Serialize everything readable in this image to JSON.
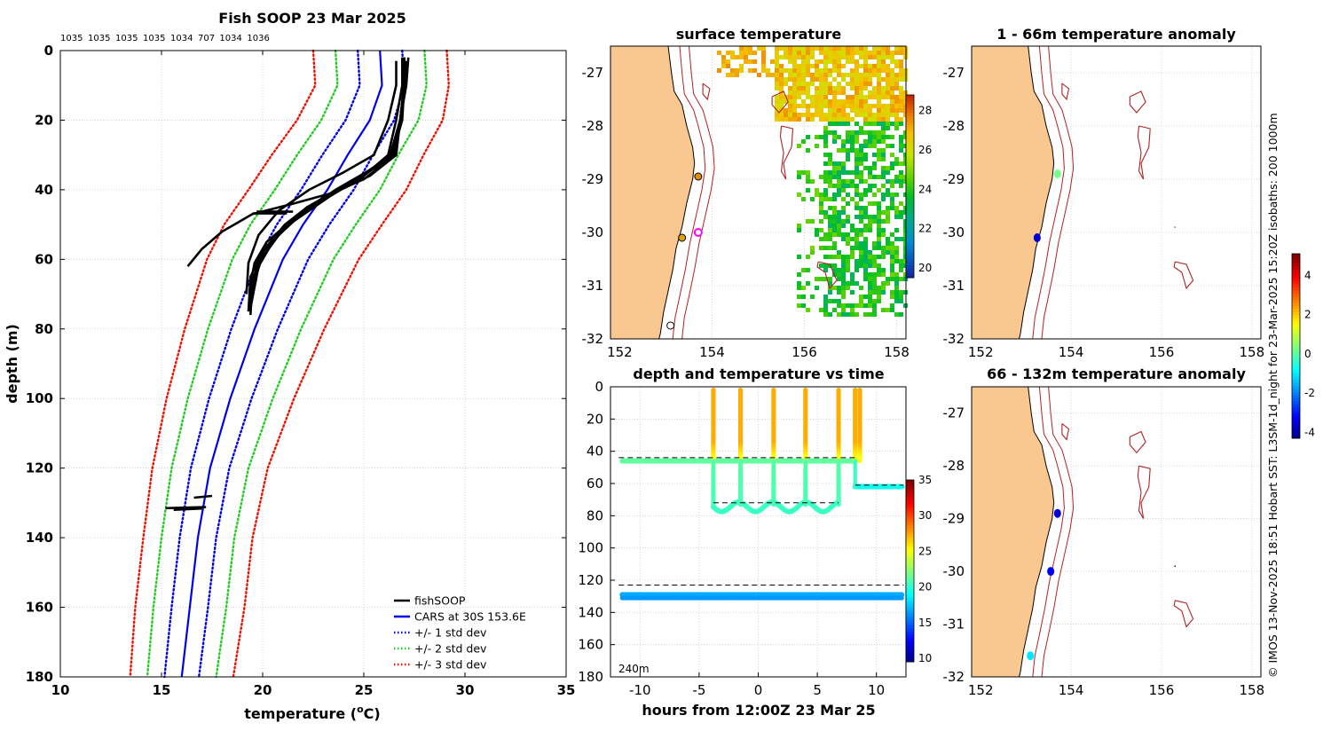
{
  "chart_data": [
    {
      "id": "profile",
      "type": "line",
      "title": "Fish SOOP 23 Mar 2025",
      "top_labels": [
        "1035",
        "1035",
        "1035",
        "1035",
        "1034",
        "707",
        "1034",
        "1036"
      ],
      "xlabel_main": "temperature (",
      "xlabel_sup": "o",
      "xlabel_end": "C)",
      "ylabel": "depth (m)",
      "xlim": [
        10,
        35
      ],
      "ylim": [
        0,
        180
      ],
      "xticks": [
        10,
        15,
        20,
        25,
        30,
        35
      ],
      "yticks": [
        0,
        20,
        40,
        60,
        80,
        100,
        120,
        140,
        160,
        180
      ],
      "depths": [
        0,
        10,
        20,
        30,
        40,
        50,
        60,
        80,
        100,
        120,
        140,
        160,
        180
      ],
      "cars_mean": [
        25.8,
        25.9,
        25.3,
        24.2,
        23.2,
        22.0,
        21.0,
        19.6,
        18.4,
        17.4,
        16.8,
        16.4,
        16.0
      ],
      "cars_std": [
        1.1,
        1.1,
        1.2,
        1.25,
        1.3,
        1.3,
        1.25,
        1.15,
        1.05,
        0.95,
        0.9,
        0.9,
        0.85
      ],
      "fish_series": [
        {
          "name": "cast1",
          "t": [
            27.0,
            27.0,
            26.8,
            26.6,
            25.3,
            23.5,
            22.0,
            21.2,
            20.2,
            19.6,
            19.4,
            19.4
          ],
          "d": [
            2,
            10,
            20,
            30,
            36,
            41,
            46,
            50,
            55,
            61,
            67,
            75
          ]
        },
        {
          "name": "cast2",
          "t": [
            27.2,
            27.1,
            26.8,
            26.3,
            25.0,
            23.3,
            21.3,
            20.0,
            19.4,
            19.3
          ],
          "d": [
            2,
            10,
            20,
            30,
            36,
            42,
            50,
            58,
            65,
            75
          ]
        },
        {
          "name": "cast3",
          "t": [
            26.9,
            26.9,
            26.6,
            26.2,
            24.8,
            22.8,
            21.2,
            20.0,
            19.5,
            19.4
          ],
          "d": [
            2,
            10,
            20,
            30,
            37,
            43,
            50,
            58,
            66,
            76
          ]
        },
        {
          "name": "cast4",
          "t": [
            27.1,
            27.0,
            26.8,
            26.4,
            25.1,
            23.6,
            22.1,
            20.8,
            19.8,
            19.4
          ],
          "d": [
            3,
            10,
            20,
            30,
            35,
            40,
            46,
            53,
            61,
            72
          ]
        },
        {
          "name": "cast5",
          "t": [
            26.6,
            26.6,
            26.2,
            25.5,
            24.0,
            22.3,
            20.8,
            19.8,
            19.3,
            19.2
          ],
          "d": [
            3,
            10,
            20,
            30,
            35,
            40,
            46,
            53,
            61,
            70
          ]
        },
        {
          "name": "cast6",
          "t": [
            27.1,
            27.0,
            26.8,
            26.5,
            25.2,
            23.7,
            22.2,
            21.1,
            20.1,
            19.5
          ],
          "d": [
            3,
            10,
            20,
            30,
            35,
            40,
            45,
            50,
            57,
            68
          ]
        },
        {
          "name": "cast7",
          "t": [
            27.0,
            27.0,
            26.8,
            26.3,
            25.0,
            23.4,
            21.5,
            19.5,
            18.0,
            17.0,
            16.3
          ],
          "d": [
            2,
            10,
            20,
            31,
            37,
            41,
            44,
            47,
            52,
            57,
            62
          ]
        },
        {
          "name": "cast8",
          "t": [
            27.0,
            27.0,
            26.9,
            26.4,
            25.2,
            23.8,
            22.2,
            20.8,
            19.8,
            19.4
          ],
          "d": [
            3,
            10,
            20,
            30,
            35,
            40,
            45,
            52,
            62,
            74
          ]
        },
        {
          "name": "bottom1",
          "t": [
            15.2,
            17.2
          ],
          "d": [
            131.5,
            131.2
          ]
        },
        {
          "name": "bottom2",
          "t": [
            15.6,
            17.0
          ],
          "d": [
            132.0,
            131.6
          ]
        },
        {
          "name": "bottom3",
          "t": [
            16.6,
            17.5
          ],
          "d": [
            128.5,
            128.0
          ]
        },
        {
          "name": "bottom4",
          "t": [
            19.7,
            21.5
          ],
          "d": [
            46.3,
            46.3
          ]
        },
        {
          "name": "bottom5",
          "t": [
            19.5,
            21.2
          ],
          "d": [
            46.8,
            46.8
          ]
        }
      ],
      "legend": [
        {
          "label": "fishSOOP",
          "color": "#000000",
          "style": "solid"
        },
        {
          "label": "CARS at 30S 153.6E",
          "color": "#0000ee",
          "style": "solid"
        },
        {
          "label": "+/- 1 std dev",
          "color": "#0000ee",
          "style": "dotted"
        },
        {
          "label": "+/- 2 std dev",
          "color": "#22cc22",
          "style": "dotted"
        },
        {
          "label": "+/- 3 std dev",
          "color": "#ee1100",
          "style": "dotted"
        }
      ]
    },
    {
      "id": "sst",
      "type": "heatmap",
      "title": "surface temperature",
      "xlim": [
        151.8,
        158.2
      ],
      "ylim": [
        -32,
        -26.5
      ],
      "xticks": [
        152,
        154,
        156,
        158
      ],
      "yticks": [
        -27,
        -28,
        -29,
        -30,
        -31,
        -32
      ],
      "colorbar": {
        "min": 19.5,
        "max": 28.8,
        "ticks": [
          20,
          22,
          24,
          26,
          28
        ]
      },
      "markers": [
        {
          "lon": 153.7,
          "lat": -28.95,
          "color": "#e08b00"
        },
        {
          "lon": 153.35,
          "lat": -30.1,
          "color": "#e0a000"
        },
        {
          "lon": 153.1,
          "lat": -31.75,
          "color": "#ffffff"
        }
      ],
      "magenta_marker": {
        "lon": 153.7,
        "lat": -30.0
      }
    },
    {
      "id": "time",
      "type": "scatter",
      "title": "depth and temperature vs time",
      "xlabel": "hours from 12:00Z 23 Mar 25",
      "annotation": "240m",
      "xlim": [
        -12.5,
        12.5
      ],
      "ylim": [
        0,
        180
      ],
      "xticks": [
        -10,
        -5,
        0,
        5,
        10
      ],
      "yticks": [
        0,
        20,
        40,
        60,
        80,
        100,
        120,
        140,
        160,
        180
      ],
      "dashed_depths": [
        44,
        72,
        123
      ],
      "colorbar": {
        "min": 9.5,
        "max": 35,
        "ticks": [
          10,
          15,
          20,
          25,
          30,
          35
        ]
      },
      "casts_x": [
        -3.8,
        -1.5,
        1.3,
        4.0,
        6.8,
        8.2,
        8.6
      ],
      "series": [
        {
          "name": "fish1",
          "x0": -11.5,
          "x1": 8.2,
          "depth": 46,
          "temp": 21.5
        },
        {
          "name": "fish2",
          "x0": -3.8,
          "x1": 6.8,
          "depth": 73,
          "temp": 20.5
        },
        {
          "name": "fish3",
          "x0": 8.2,
          "x1": 12.2,
          "depth": 62,
          "temp": 19.5
        },
        {
          "name": "fish4",
          "x0": -11.5,
          "x1": 12.2,
          "depth": 129,
          "temp": 17.0
        }
      ]
    },
    {
      "id": "anom1",
      "type": "scatter",
      "title": "1 - 66m temperature anomaly",
      "xlim": [
        151.8,
        158.2
      ],
      "ylim": [
        -32,
        -26.5
      ],
      "xticks": [
        152,
        154,
        156,
        158
      ],
      "yticks": [
        -27,
        -28,
        -29,
        -30,
        -31,
        -32
      ],
      "points": [
        {
          "lon": 153.7,
          "lat": -28.9,
          "anom": 0.3
        },
        {
          "lon": 153.25,
          "lat": -30.1,
          "anom": -3.5
        }
      ]
    },
    {
      "id": "anom2",
      "type": "scatter",
      "title": "66 - 132m temperature anomaly",
      "xlim": [
        151.8,
        158.2
      ],
      "ylim": [
        -32,
        -26.5
      ],
      "xticks": [
        152,
        154,
        156,
        158
      ],
      "yticks": [
        -27,
        -28,
        -29,
        -30,
        -31,
        -32
      ],
      "points": [
        {
          "lon": 153.7,
          "lat": -28.9,
          "anom": -3.5
        },
        {
          "lon": 153.55,
          "lat": -30.0,
          "anom": -3.2
        },
        {
          "lon": 153.1,
          "lat": -31.6,
          "anom": -1.0
        }
      ],
      "colorbar": {
        "min": -4.3,
        "max": 5.1,
        "ticks": [
          -4,
          -2,
          0,
          2,
          4
        ]
      }
    }
  ],
  "side_note": "© IMOS 13-Nov-2025 18:51 Hobart SST: L3SM-1d_night for 23-Mar-2025 15:20Z isobaths: 200  1000m"
}
